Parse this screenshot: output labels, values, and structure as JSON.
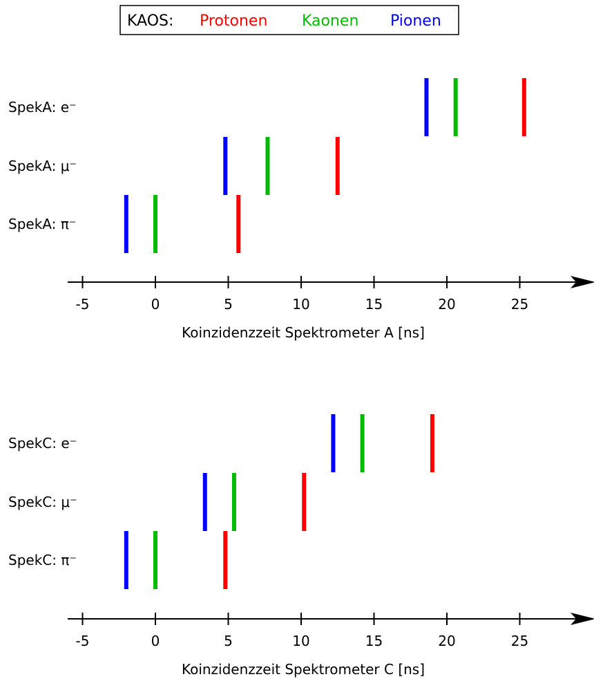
{
  "legend": {
    "prefix": "KAOS:",
    "items": [
      {
        "label": "Protonen",
        "color": "#ff0000"
      },
      {
        "label": "Kaonen",
        "color": "#00bb00"
      },
      {
        "label": "Pionen",
        "color": "#0000ff"
      }
    ]
  },
  "chart_data": [
    {
      "type": "scatter",
      "xlabel": "Koinzidenzzeit Spektrometer A [ns]",
      "xticks": [
        -5,
        0,
        5,
        10,
        15,
        20,
        25
      ],
      "xlim": [
        -6,
        30
      ],
      "rows": [
        {
          "label": "SpekA: e⁻",
          "pionen": 18.6,
          "kaonen": 20.6,
          "protonen": 25.3
        },
        {
          "label": "SpekA: μ⁻",
          "pionen": 4.8,
          "kaonen": 7.7,
          "protonen": 12.5
        },
        {
          "label": "SpekA: π⁻",
          "pionen": -2.0,
          "kaonen": 0.0,
          "protonen": 5.7
        }
      ]
    },
    {
      "type": "scatter",
      "xlabel": "Koinzidenzzeit Spektrometer C [ns]",
      "xticks": [
        -5,
        0,
        5,
        10,
        15,
        20,
        25
      ],
      "xlim": [
        -6,
        30
      ],
      "rows": [
        {
          "label": "SpekC: e⁻",
          "pionen": 12.2,
          "kaonen": 14.2,
          "protonen": 19.0
        },
        {
          "label": "SpekC: μ⁻",
          "pionen": 3.4,
          "kaonen": 5.4,
          "protonen": 10.2
        },
        {
          "label": "SpekC: π⁻",
          "pionen": -2.0,
          "kaonen": 0.0,
          "protonen": 4.8
        }
      ]
    }
  ]
}
